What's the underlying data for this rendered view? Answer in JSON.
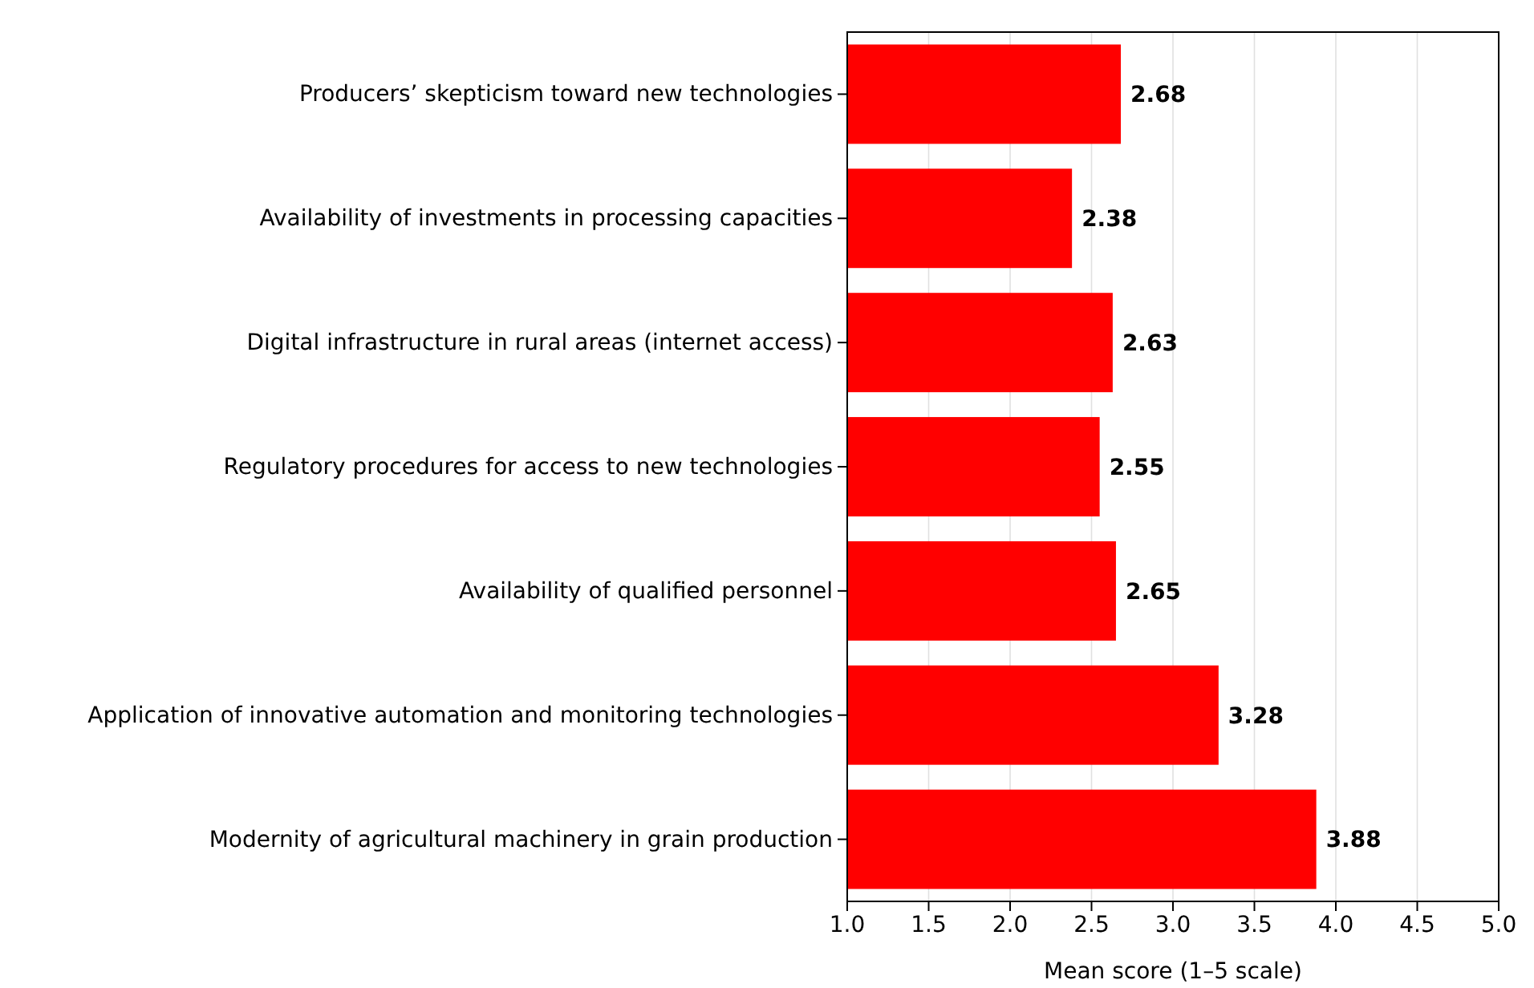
{
  "chart_data": {
    "type": "bar",
    "orientation": "horizontal",
    "xlabel": "Mean score (1–5 scale)",
    "categories": [
      "Producers’ skepticism toward new technologies",
      "Availability of investments in processing capacities",
      "Digital infrastructure in rural areas (internet access)",
      "Regulatory procedures for access to new technologies",
      "Availability of qualified personnel",
      "Application of innovative automation and monitoring technologies",
      "Modernity of agricultural machinery in grain production"
    ],
    "values": [
      2.68,
      2.38,
      2.63,
      2.55,
      2.65,
      3.28,
      3.88
    ],
    "color": "#ff0000",
    "xlim": [
      1,
      5
    ],
    "xticks": [
      {
        "value": 1,
        "label": "1.0"
      },
      {
        "value": 1.5,
        "label": "1.5"
      },
      {
        "value": 2,
        "label": "2.0"
      },
      {
        "value": 2.5,
        "label": "2.5"
      },
      {
        "value": 3,
        "label": "3.0"
      },
      {
        "value": 3.5,
        "label": "3.5"
      },
      {
        "value": 4,
        "label": "4.0"
      },
      {
        "value": 4.5,
        "label": "4.5"
      },
      {
        "value": 5,
        "label": "5.0"
      }
    ],
    "grid": "x",
    "data_labels": true
  }
}
